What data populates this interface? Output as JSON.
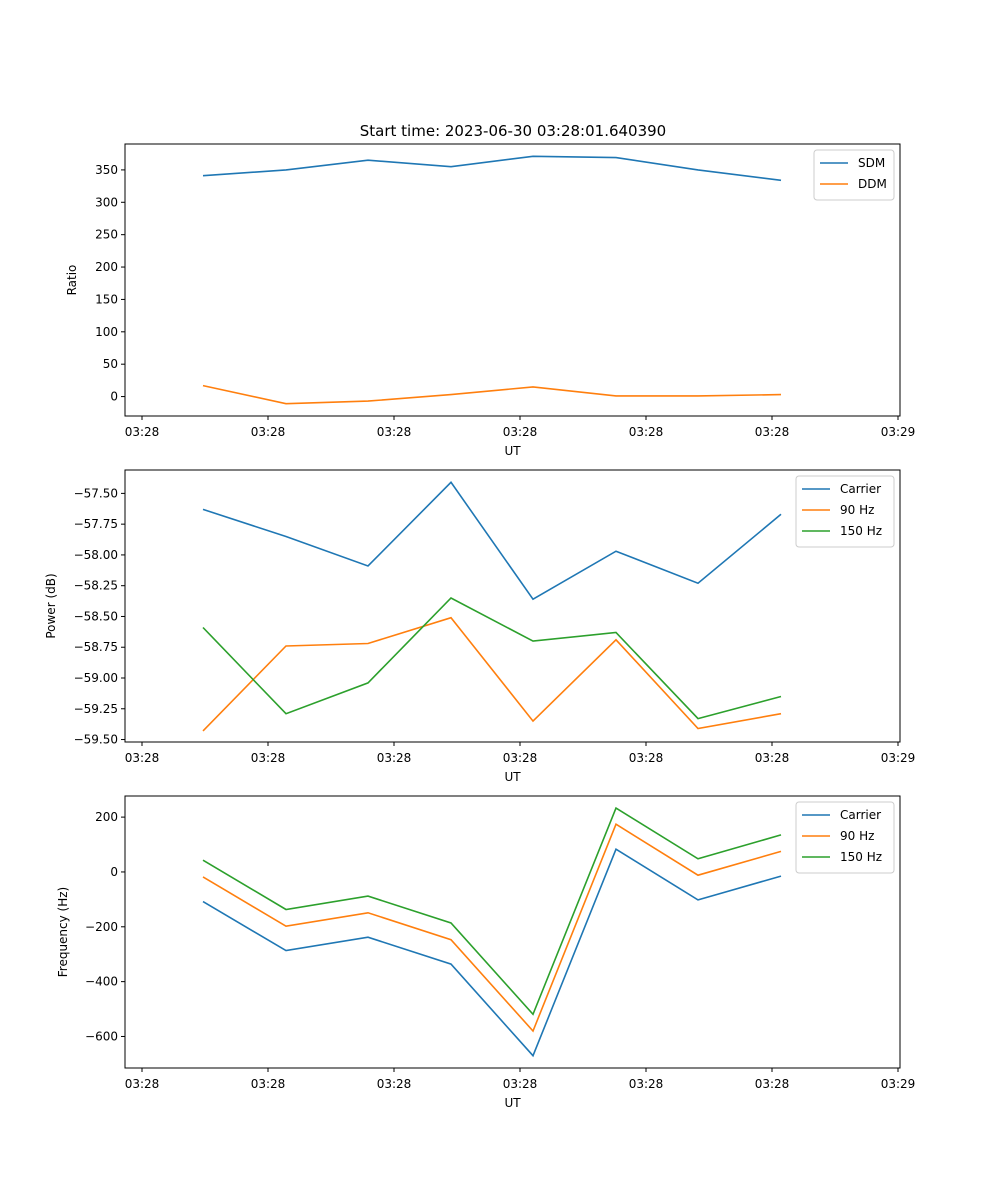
{
  "title": "Start time: 2023-06-30 03:28:01.640390",
  "colors": {
    "blue": "#1f77b4",
    "orange": "#ff7f0e",
    "green": "#2ca02c"
  },
  "chart_data": [
    {
      "type": "line",
      "title": "Start time: 2023-06-30 03:28:01.640390",
      "xlabel": "UT",
      "ylabel": "Ratio",
      "x_tick_labels": [
        "03:28",
        "03:28",
        "03:28",
        "03:28",
        "03:28",
        "03:28",
        "03:28",
        "03:29"
      ],
      "y_ticks": [
        "0",
        "50",
        "100",
        "150",
        "200",
        "250",
        "300",
        "350"
      ],
      "ylim": [
        -30,
        390
      ],
      "legend_position": "top-right",
      "grid": false,
      "series": [
        {
          "name": "SDM",
          "values": [
            341,
            350,
            365,
            355,
            371,
            369,
            350,
            334
          ]
        },
        {
          "name": "DDM",
          "values": [
            17,
            -11,
            -7,
            3,
            15,
            1,
            1,
            3
          ]
        }
      ]
    },
    {
      "type": "line",
      "title": "",
      "xlabel": "UT",
      "ylabel": "Power (dB)",
      "x_tick_labels": [
        "03:28",
        "03:28",
        "03:28",
        "03:28",
        "03:28",
        "03:28",
        "03:28",
        "03:29"
      ],
      "y_ticks": [
        "−59.50",
        "−59.25",
        "−59.00",
        "−58.75",
        "−58.50",
        "−58.25",
        "−58.00",
        "−57.75",
        "−57.50"
      ],
      "ylim": [
        -59.52,
        -57.31
      ],
      "legend_position": "top-right",
      "grid": false,
      "series": [
        {
          "name": "Carrier",
          "values": [
            -57.63,
            -57.85,
            -58.09,
            -57.41,
            -58.36,
            -57.97,
            -58.23,
            -57.67
          ]
        },
        {
          "name": "90 Hz",
          "values": [
            -59.43,
            -58.74,
            -58.72,
            -58.51,
            -59.35,
            -58.69,
            -59.41,
            -59.29
          ]
        },
        {
          "name": "150 Hz",
          "values": [
            -58.59,
            -59.29,
            -59.04,
            -58.35,
            -58.7,
            -58.63,
            -59.33,
            -59.15
          ]
        }
      ]
    },
    {
      "type": "line",
      "title": "",
      "xlabel": "UT",
      "ylabel": "Frequency (Hz)",
      "x_tick_labels": [
        "03:28",
        "03:28",
        "03:28",
        "03:28",
        "03:28",
        "03:28",
        "03:28",
        "03:29"
      ],
      "y_ticks": [
        "−600",
        "−400",
        "−200",
        "0",
        "200"
      ],
      "ylim": [
        -715,
        277
      ],
      "legend_position": "top-right",
      "grid": false,
      "series": [
        {
          "name": "Carrier",
          "values": [
            -108,
            -287,
            -238,
            -336,
            -670,
            83,
            -102,
            -15
          ]
        },
        {
          "name": "90 Hz",
          "values": [
            -18,
            -198,
            -149,
            -247,
            -580,
            174,
            -12,
            75
          ]
        },
        {
          "name": "150 Hz",
          "values": [
            43,
            -137,
            -88,
            -186,
            -519,
            233,
            48,
            135
          ]
        }
      ]
    }
  ]
}
